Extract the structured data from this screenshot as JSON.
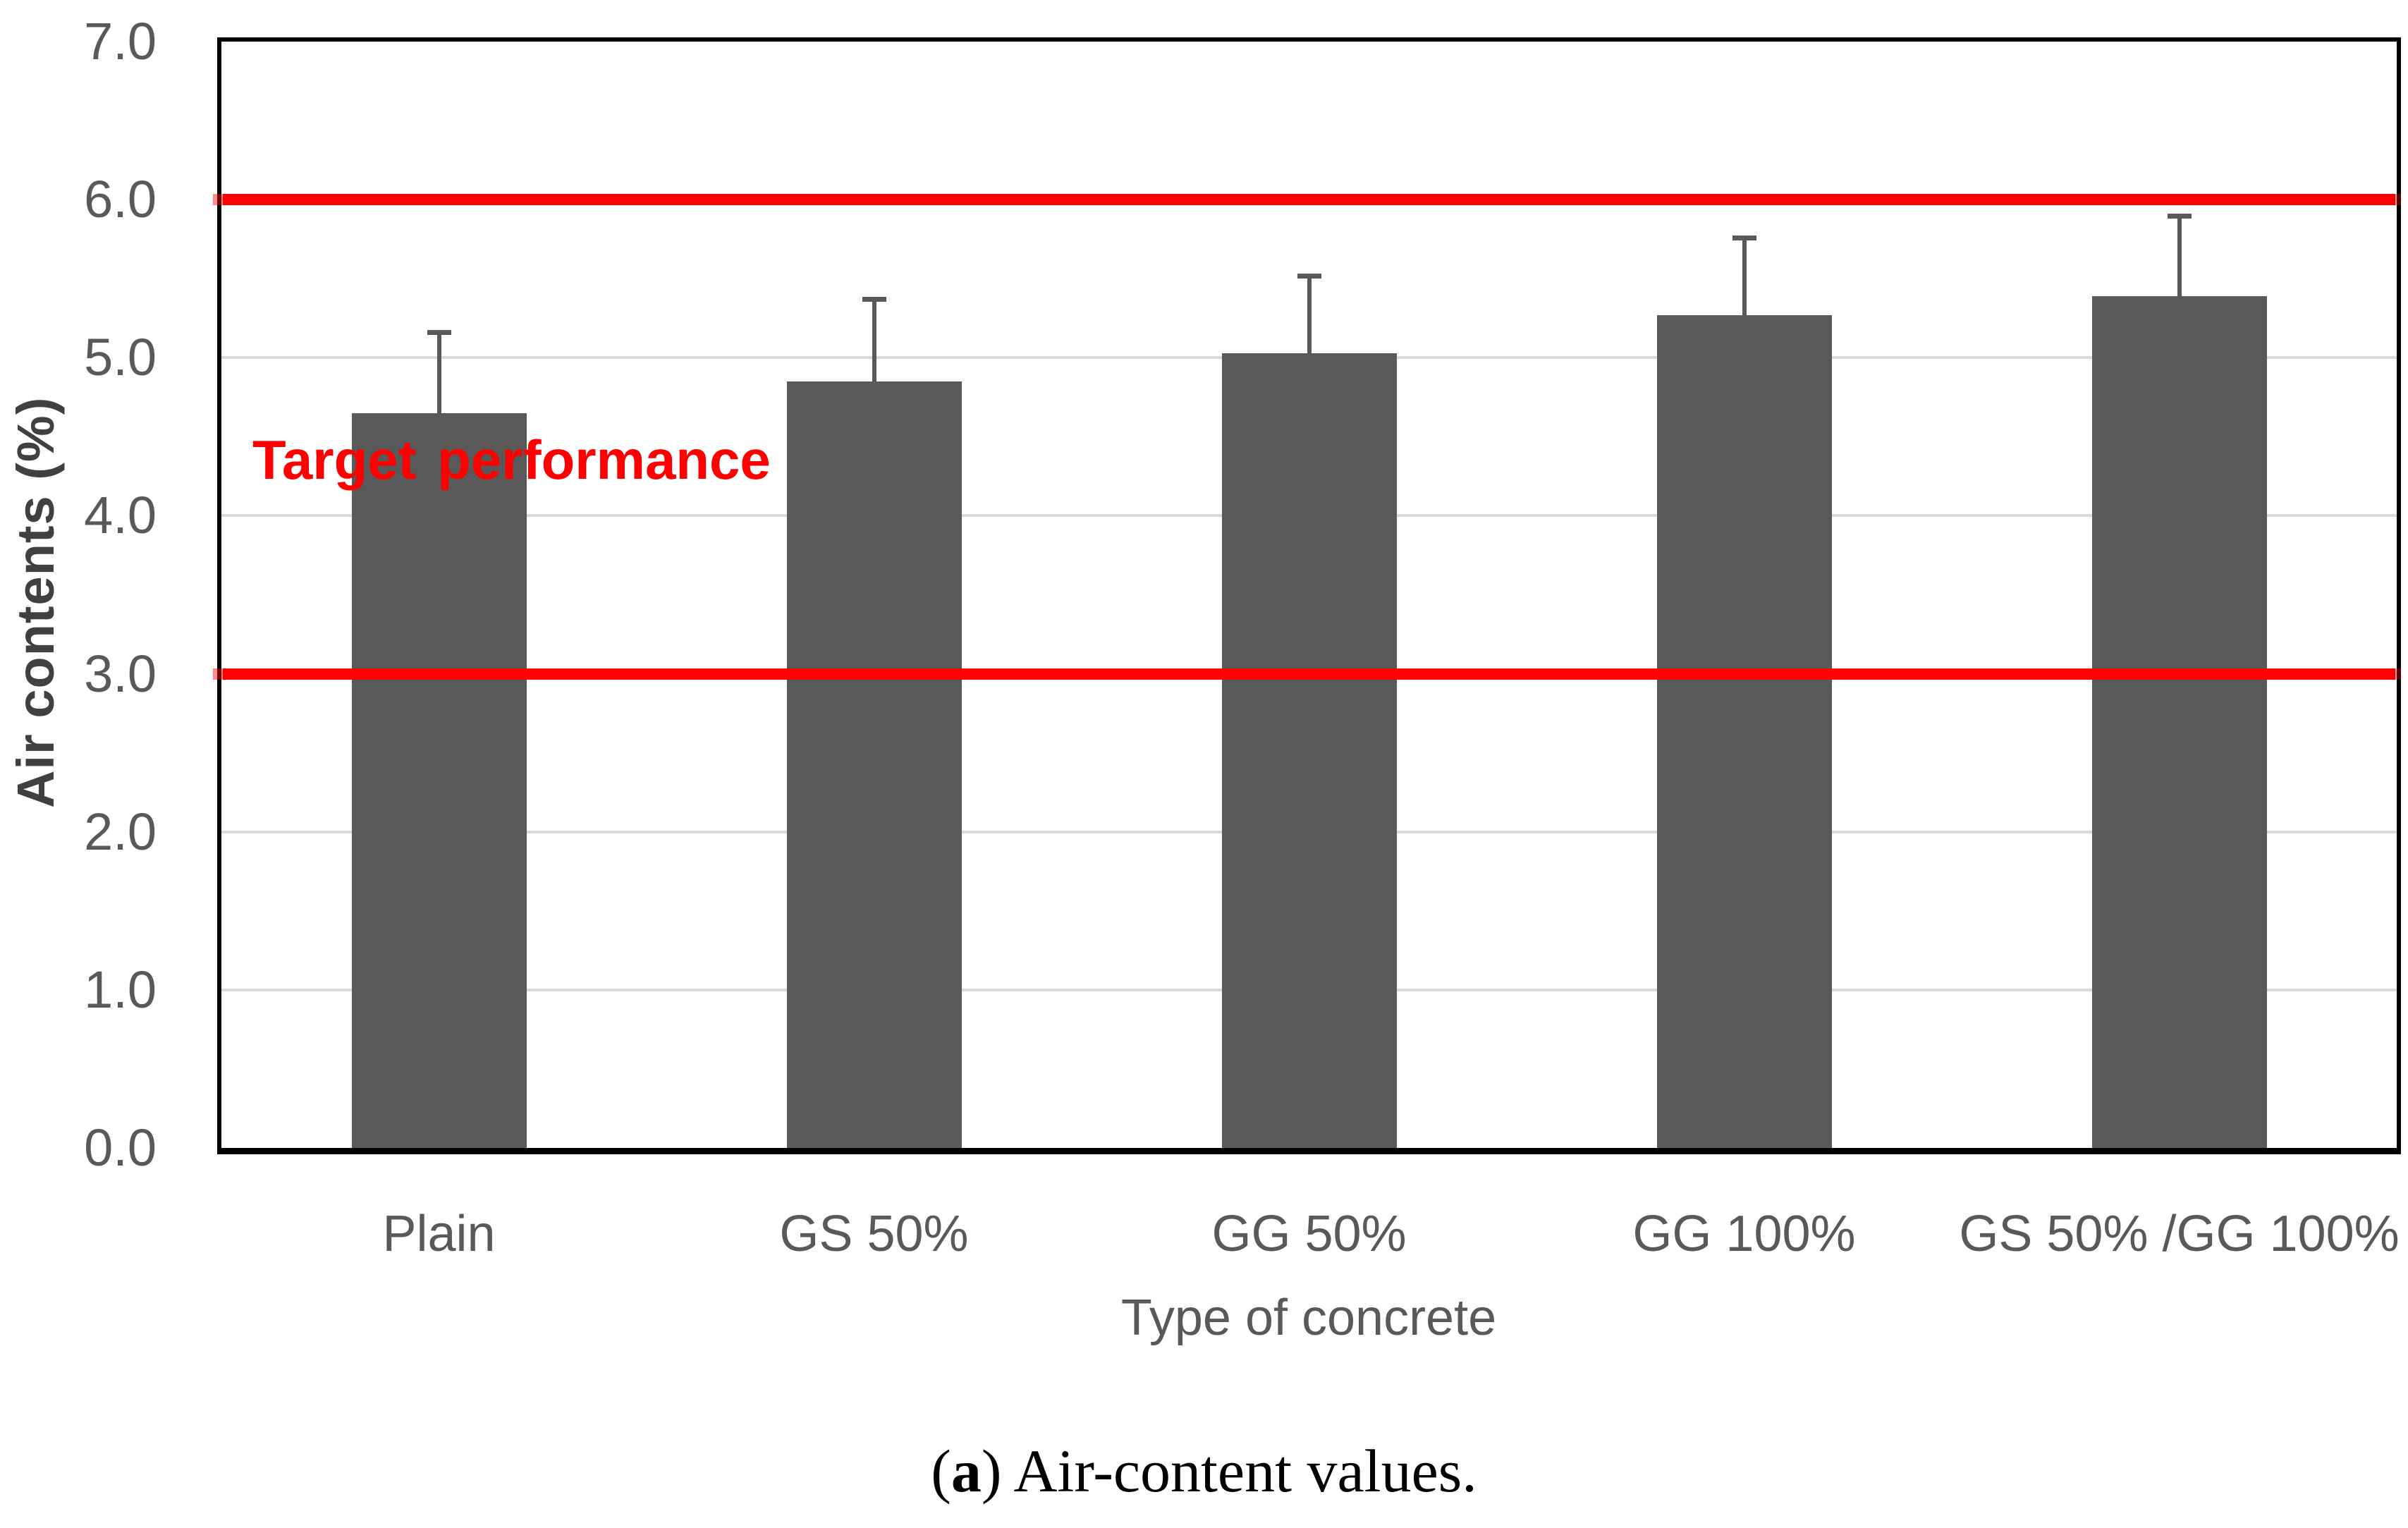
{
  "chart_data": {
    "type": "bar",
    "title": "",
    "categories": [
      "Plain",
      "GS 50%",
      "GG 50%",
      "GG 100%",
      "GS 50% /GG 100%"
    ],
    "values": [
      4.65,
      4.85,
      5.03,
      5.27,
      5.39
    ],
    "error_plus": [
      0.51,
      0.52,
      0.49,
      0.49,
      0.51
    ],
    "xlabel": "Type of concrete",
    "ylabel": "Air contents (%)",
    "ylim": [
      0.0,
      7.0
    ],
    "ytick_step": 1.0,
    "ytick_labels": [
      "0.0",
      "1.0",
      "2.0",
      "3.0",
      "4.0",
      "5.0",
      "6.0",
      "7.0"
    ],
    "grid": true,
    "legend": "none",
    "target_lines": [
      3.0,
      6.0
    ],
    "annotation": {
      "text": "Target performance"
    },
    "colors": {
      "bar": "#595959",
      "error": "#595959",
      "target": "#ff0000",
      "grid": "#d9d9d9",
      "axis": "#000000",
      "tick_text": "#595959",
      "y_title_text": "#404040"
    }
  },
  "caption": {
    "prefix": "(",
    "bold": "a",
    "suffix": ") Air-content values."
  }
}
